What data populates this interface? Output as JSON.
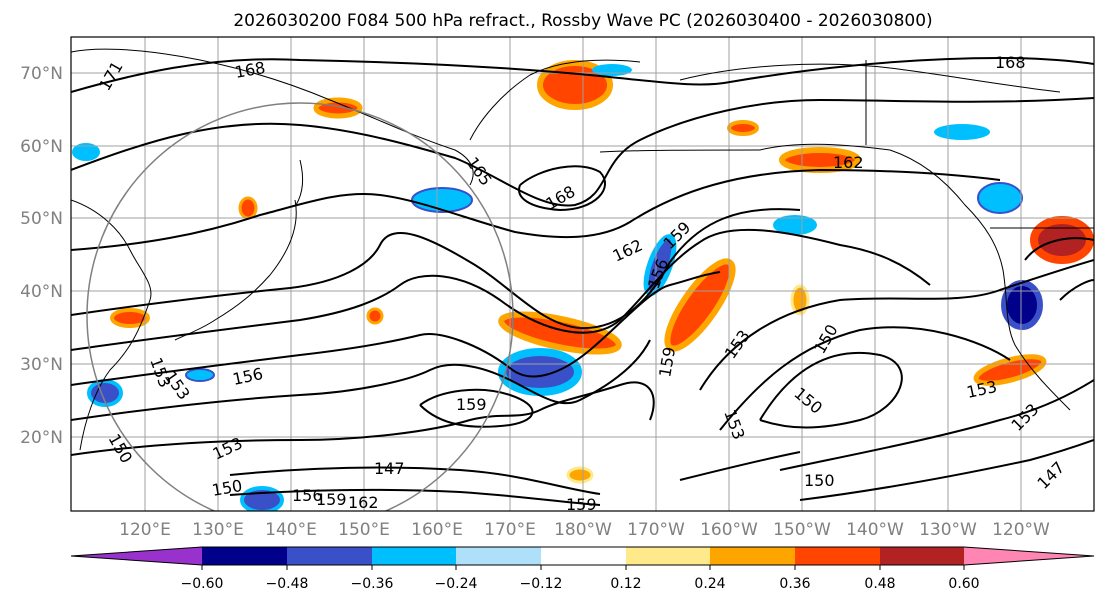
{
  "title": "2026030200 F084 500 hPa refract., Rossby Wave PC (2026030400 - 2026030800)",
  "map": {
    "lat_labels": [
      "70°N",
      "60°N",
      "50°N",
      "40°N",
      "30°N",
      "20°N"
    ],
    "lon_labels": [
      "120°E",
      "130°E",
      "140°E",
      "150°E",
      "160°E",
      "170°E",
      "180°W",
      "170°W",
      "160°W",
      "150°W",
      "140°W",
      "130°W",
      "120°W"
    ],
    "contour_labels": [
      "171",
      "168",
      "168",
      "165",
      "168",
      "162",
      "162",
      "159",
      "156",
      "159",
      "153",
      "150",
      "150",
      "153",
      "156",
      "159",
      "153",
      "150",
      "147",
      "150",
      "156",
      "159",
      "162",
      "159",
      "150",
      "153",
      "153",
      "147",
      "153",
      "153"
    ]
  },
  "colorbar": {
    "tick_labels": [
      "−0.60",
      "−0.48",
      "−0.36",
      "−0.24",
      "−0.12",
      "0.12",
      "0.24",
      "0.36",
      "0.48",
      "0.60"
    ],
    "colors": {
      "lt_-060": "#9932cc",
      "-060_-048": "#00008b",
      "-048_-036": "#3a50c8",
      "-036_-024": "#00bfff",
      "-024_-012": "#afe0fa",
      "-012_012": "#ffffff",
      "012_024": "#ffe98a",
      "024_036": "#ffa500",
      "036_048": "#ff4500",
      "048_060": "#b22222",
      "gt_060": "#ff86b2"
    }
  }
}
